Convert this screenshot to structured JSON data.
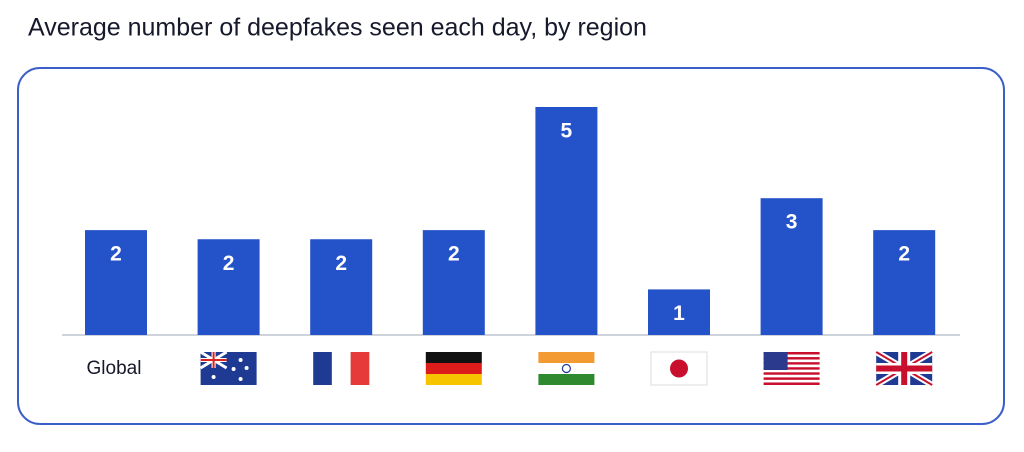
{
  "chart_data": {
    "type": "bar",
    "title": "Average number of deepfakes seen each day, by region",
    "categories": [
      "Global",
      null,
      null,
      null,
      null,
      null,
      null,
      null
    ],
    "values": [
      2.3,
      2.1,
      2.1,
      2.3,
      5,
      1,
      3,
      2.3
    ],
    "value_labels": [
      "2",
      "2",
      "2",
      "2",
      "5",
      "1",
      "3",
      "2"
    ],
    "color": "#2452c9"
  }
}
